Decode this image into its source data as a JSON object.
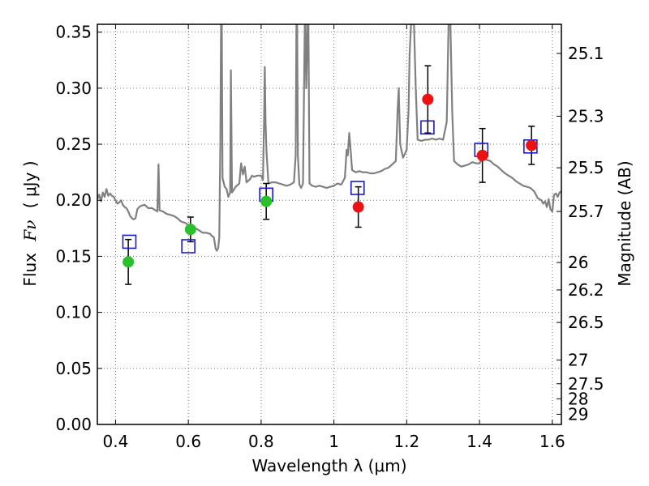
{
  "chart_data": {
    "type": "scatter",
    "xlabel": "Wavelength  λ (μm)",
    "ylabel_text": "Flux",
    "ylabel_symbol": "Fν",
    "ylabel_unit": "( μJy )",
    "y2label": "Magnitude (AB)",
    "xlim": [
      0.35,
      1.625
    ],
    "ylim": [
      0.0,
      0.357
    ],
    "grid": true,
    "x_ticks": [
      0.4,
      0.6,
      0.8,
      1.0,
      1.2,
      1.4,
      1.6
    ],
    "x_tick_labels": [
      "0.4",
      "0.6",
      "0.8",
      "1",
      "1.2",
      "1.4",
      "1.6"
    ],
    "y_ticks": [
      0.0,
      0.05,
      0.1,
      0.15,
      0.2,
      0.25,
      0.3,
      0.35
    ],
    "y_tick_labels": [
      "0.00",
      "0.05",
      "0.10",
      "0.15",
      "0.20",
      "0.25",
      "0.30",
      "0.35"
    ],
    "mag_ticks": [
      {
        "label": "25.1",
        "flux": 0.331
      },
      {
        "label": "25.3",
        "flux": 0.275
      },
      {
        "label": "25.5",
        "flux": 0.229
      },
      {
        "label": "25.7",
        "flux": 0.19
      },
      {
        "label": "26",
        "flux": 0.1445
      },
      {
        "label": "26.2",
        "flux": 0.12
      },
      {
        "label": "26.5",
        "flux": 0.091
      },
      {
        "label": "27",
        "flux": 0.0575
      },
      {
        "label": "27.5",
        "flux": 0.0363
      },
      {
        "label": "28",
        "flux": 0.0229
      },
      {
        "label": "29",
        "flux": 0.0091
      }
    ],
    "model_spectrum": {
      "color": "#808080",
      "points": [
        [
          0.35,
          0.201
        ],
        [
          0.355,
          0.205
        ],
        [
          0.36,
          0.199
        ],
        [
          0.365,
          0.207
        ],
        [
          0.37,
          0.203
        ],
        [
          0.375,
          0.21
        ],
        [
          0.38,
          0.204
        ],
        [
          0.385,
          0.206
        ],
        [
          0.39,
          0.204
        ],
        [
          0.395,
          0.203
        ],
        [
          0.4,
          0.2
        ],
        [
          0.405,
          0.197
        ],
        [
          0.41,
          0.198
        ],
        [
          0.415,
          0.2
        ],
        [
          0.42,
          0.196
        ],
        [
          0.425,
          0.194
        ],
        [
          0.43,
          0.193
        ],
        [
          0.435,
          0.19
        ],
        [
          0.44,
          0.186
        ],
        [
          0.445,
          0.184
        ],
        [
          0.45,
          0.183
        ],
        [
          0.455,
          0.184
        ],
        [
          0.46,
          0.192
        ],
        [
          0.465,
          0.194
        ],
        [
          0.47,
          0.195
        ],
        [
          0.48,
          0.196
        ],
        [
          0.49,
          0.193
        ],
        [
          0.5,
          0.193
        ],
        [
          0.505,
          0.192
        ],
        [
          0.51,
          0.191
        ],
        [
          0.515,
          0.19
        ],
        [
          0.518,
          0.232
        ],
        [
          0.521,
          0.191
        ],
        [
          0.53,
          0.19
        ],
        [
          0.54,
          0.188
        ],
        [
          0.55,
          0.187
        ],
        [
          0.56,
          0.186
        ],
        [
          0.57,
          0.184
        ],
        [
          0.58,
          0.181
        ],
        [
          0.59,
          0.18
        ],
        [
          0.6,
          0.178
        ],
        [
          0.61,
          0.177
        ],
        [
          0.62,
          0.175
        ],
        [
          0.63,
          0.173
        ],
        [
          0.64,
          0.171
        ],
        [
          0.65,
          0.171
        ],
        [
          0.66,
          0.17
        ],
        [
          0.665,
          0.168
        ],
        [
          0.67,
          0.167
        ],
        [
          0.675,
          0.157
        ],
        [
          0.678,
          0.155
        ],
        [
          0.682,
          0.157
        ],
        [
          0.685,
          0.167
        ],
        [
          0.688,
          0.25
        ],
        [
          0.69,
          0.357
        ],
        [
          0.692,
          0.357
        ],
        [
          0.694,
          0.22
        ],
        [
          0.7,
          0.212
        ],
        [
          0.705,
          0.21
        ],
        [
          0.71,
          0.203
        ],
        [
          0.715,
          0.207
        ],
        [
          0.717,
          0.316
        ],
        [
          0.72,
          0.207
        ],
        [
          0.73,
          0.212
        ],
        [
          0.74,
          0.215
        ],
        [
          0.745,
          0.233
        ],
        [
          0.75,
          0.223
        ],
        [
          0.755,
          0.23
        ],
        [
          0.76,
          0.216
        ],
        [
          0.77,
          0.219
        ],
        [
          0.775,
          0.222
        ],
        [
          0.78,
          0.221
        ],
        [
          0.79,
          0.222
        ],
        [
          0.8,
          0.222
        ],
        [
          0.805,
          0.218
        ],
        [
          0.808,
          0.27
        ],
        [
          0.81,
          0.319
        ],
        [
          0.812,
          0.27
        ],
        [
          0.815,
          0.242
        ],
        [
          0.82,
          0.215
        ],
        [
          0.83,
          0.216
        ],
        [
          0.84,
          0.216
        ],
        [
          0.85,
          0.215
        ],
        [
          0.86,
          0.214
        ],
        [
          0.87,
          0.213
        ],
        [
          0.88,
          0.214
        ],
        [
          0.89,
          0.216
        ],
        [
          0.895,
          0.24
        ],
        [
          0.897,
          0.357
        ],
        [
          0.899,
          0.357
        ],
        [
          0.901,
          0.24
        ],
        [
          0.905,
          0.214
        ],
        [
          0.91,
          0.211
        ],
        [
          0.915,
          0.215
        ],
        [
          0.918,
          0.3
        ],
        [
          0.92,
          0.357
        ],
        [
          0.922,
          0.357
        ],
        [
          0.924,
          0.3
        ],
        [
          0.928,
          0.357
        ],
        [
          0.93,
          0.357
        ],
        [
          0.933,
          0.215
        ],
        [
          0.94,
          0.213
        ],
        [
          0.95,
          0.212
        ],
        [
          0.96,
          0.213
        ],
        [
          0.97,
          0.212
        ],
        [
          0.98,
          0.211
        ],
        [
          0.99,
          0.212
        ],
        [
          1.0,
          0.213
        ],
        [
          1.01,
          0.215
        ],
        [
          1.02,
          0.214
        ],
        [
          1.03,
          0.22
        ],
        [
          1.035,
          0.245
        ],
        [
          1.038,
          0.24
        ],
        [
          1.042,
          0.26
        ],
        [
          1.046,
          0.245
        ],
        [
          1.05,
          0.227
        ],
        [
          1.06,
          0.225
        ],
        [
          1.07,
          0.226
        ],
        [
          1.08,
          0.225
        ],
        [
          1.09,
          0.225
        ],
        [
          1.1,
          0.224
        ],
        [
          1.11,
          0.224
        ],
        [
          1.12,
          0.225
        ],
        [
          1.13,
          0.226
        ],
        [
          1.14,
          0.228
        ],
        [
          1.15,
          0.229
        ],
        [
          1.16,
          0.232
        ],
        [
          1.17,
          0.235
        ],
        [
          1.175,
          0.28
        ],
        [
          1.178,
          0.3
        ],
        [
          1.182,
          0.25
        ],
        [
          1.19,
          0.238
        ],
        [
          1.2,
          0.245
        ],
        [
          1.205,
          0.28
        ],
        [
          1.208,
          0.33
        ],
        [
          1.212,
          0.357
        ],
        [
          1.22,
          0.357
        ],
        [
          1.225,
          0.3
        ],
        [
          1.23,
          0.254
        ],
        [
          1.24,
          0.253
        ],
        [
          1.25,
          0.254
        ],
        [
          1.26,
          0.254
        ],
        [
          1.27,
          0.255
        ],
        [
          1.28,
          0.254
        ],
        [
          1.29,
          0.255
        ],
        [
          1.3,
          0.254
        ],
        [
          1.31,
          0.27
        ],
        [
          1.315,
          0.357
        ],
        [
          1.32,
          0.357
        ],
        [
          1.325,
          0.28
        ],
        [
          1.33,
          0.235
        ],
        [
          1.34,
          0.232
        ],
        [
          1.35,
          0.23
        ],
        [
          1.36,
          0.231
        ],
        [
          1.37,
          0.232
        ],
        [
          1.38,
          0.234
        ],
        [
          1.39,
          0.233
        ],
        [
          1.4,
          0.233
        ],
        [
          1.41,
          0.238
        ],
        [
          1.42,
          0.236
        ],
        [
          1.43,
          0.235
        ],
        [
          1.44,
          0.232
        ],
        [
          1.45,
          0.23
        ],
        [
          1.46,
          0.227
        ],
        [
          1.47,
          0.224
        ],
        [
          1.48,
          0.222
        ],
        [
          1.49,
          0.22
        ],
        [
          1.5,
          0.217
        ],
        [
          1.51,
          0.215
        ],
        [
          1.52,
          0.213
        ],
        [
          1.53,
          0.212
        ],
        [
          1.54,
          0.211
        ],
        [
          1.55,
          0.208
        ],
        [
          1.555,
          0.205
        ],
        [
          1.56,
          0.202
        ],
        [
          1.565,
          0.201
        ],
        [
          1.57,
          0.2
        ],
        [
          1.575,
          0.197
        ],
        [
          1.58,
          0.199
        ],
        [
          1.585,
          0.194
        ],
        [
          1.59,
          0.201
        ],
        [
          1.595,
          0.192
        ],
        [
          1.6,
          0.19
        ],
        [
          1.605,
          0.205
        ],
        [
          1.61,
          0.206
        ],
        [
          1.615,
          0.203
        ],
        [
          1.62,
          0.207
        ],
        [
          1.625,
          0.208
        ]
      ]
    },
    "measured_points": [
      {
        "x": 0.435,
        "y": 0.145,
        "err": 0.02,
        "color": "#2bbf2b"
      },
      {
        "x": 0.606,
        "y": 0.174,
        "err": 0.011,
        "color": "#2bbf2b"
      },
      {
        "x": 0.814,
        "y": 0.199,
        "err": 0.016,
        "color": "#2bbf2b"
      },
      {
        "x": 1.067,
        "y": 0.194,
        "err": 0.018,
        "color": "#ee1111"
      },
      {
        "x": 1.258,
        "y": 0.29,
        "err": 0.03,
        "color": "#ee1111"
      },
      {
        "x": 1.408,
        "y": 0.24,
        "err": 0.024,
        "color": "#ee1111"
      },
      {
        "x": 1.543,
        "y": 0.249,
        "err": 0.017,
        "color": "#ee1111"
      }
    ],
    "model_points": {
      "color": "#1a1acc",
      "points": [
        {
          "x": 0.438,
          "y": 0.163
        },
        {
          "x": 0.6,
          "y": 0.159
        },
        {
          "x": 0.814,
          "y": 0.205
        },
        {
          "x": 1.065,
          "y": 0.211
        },
        {
          "x": 1.257,
          "y": 0.265
        },
        {
          "x": 1.405,
          "y": 0.245
        },
        {
          "x": 1.54,
          "y": 0.248
        }
      ]
    }
  }
}
